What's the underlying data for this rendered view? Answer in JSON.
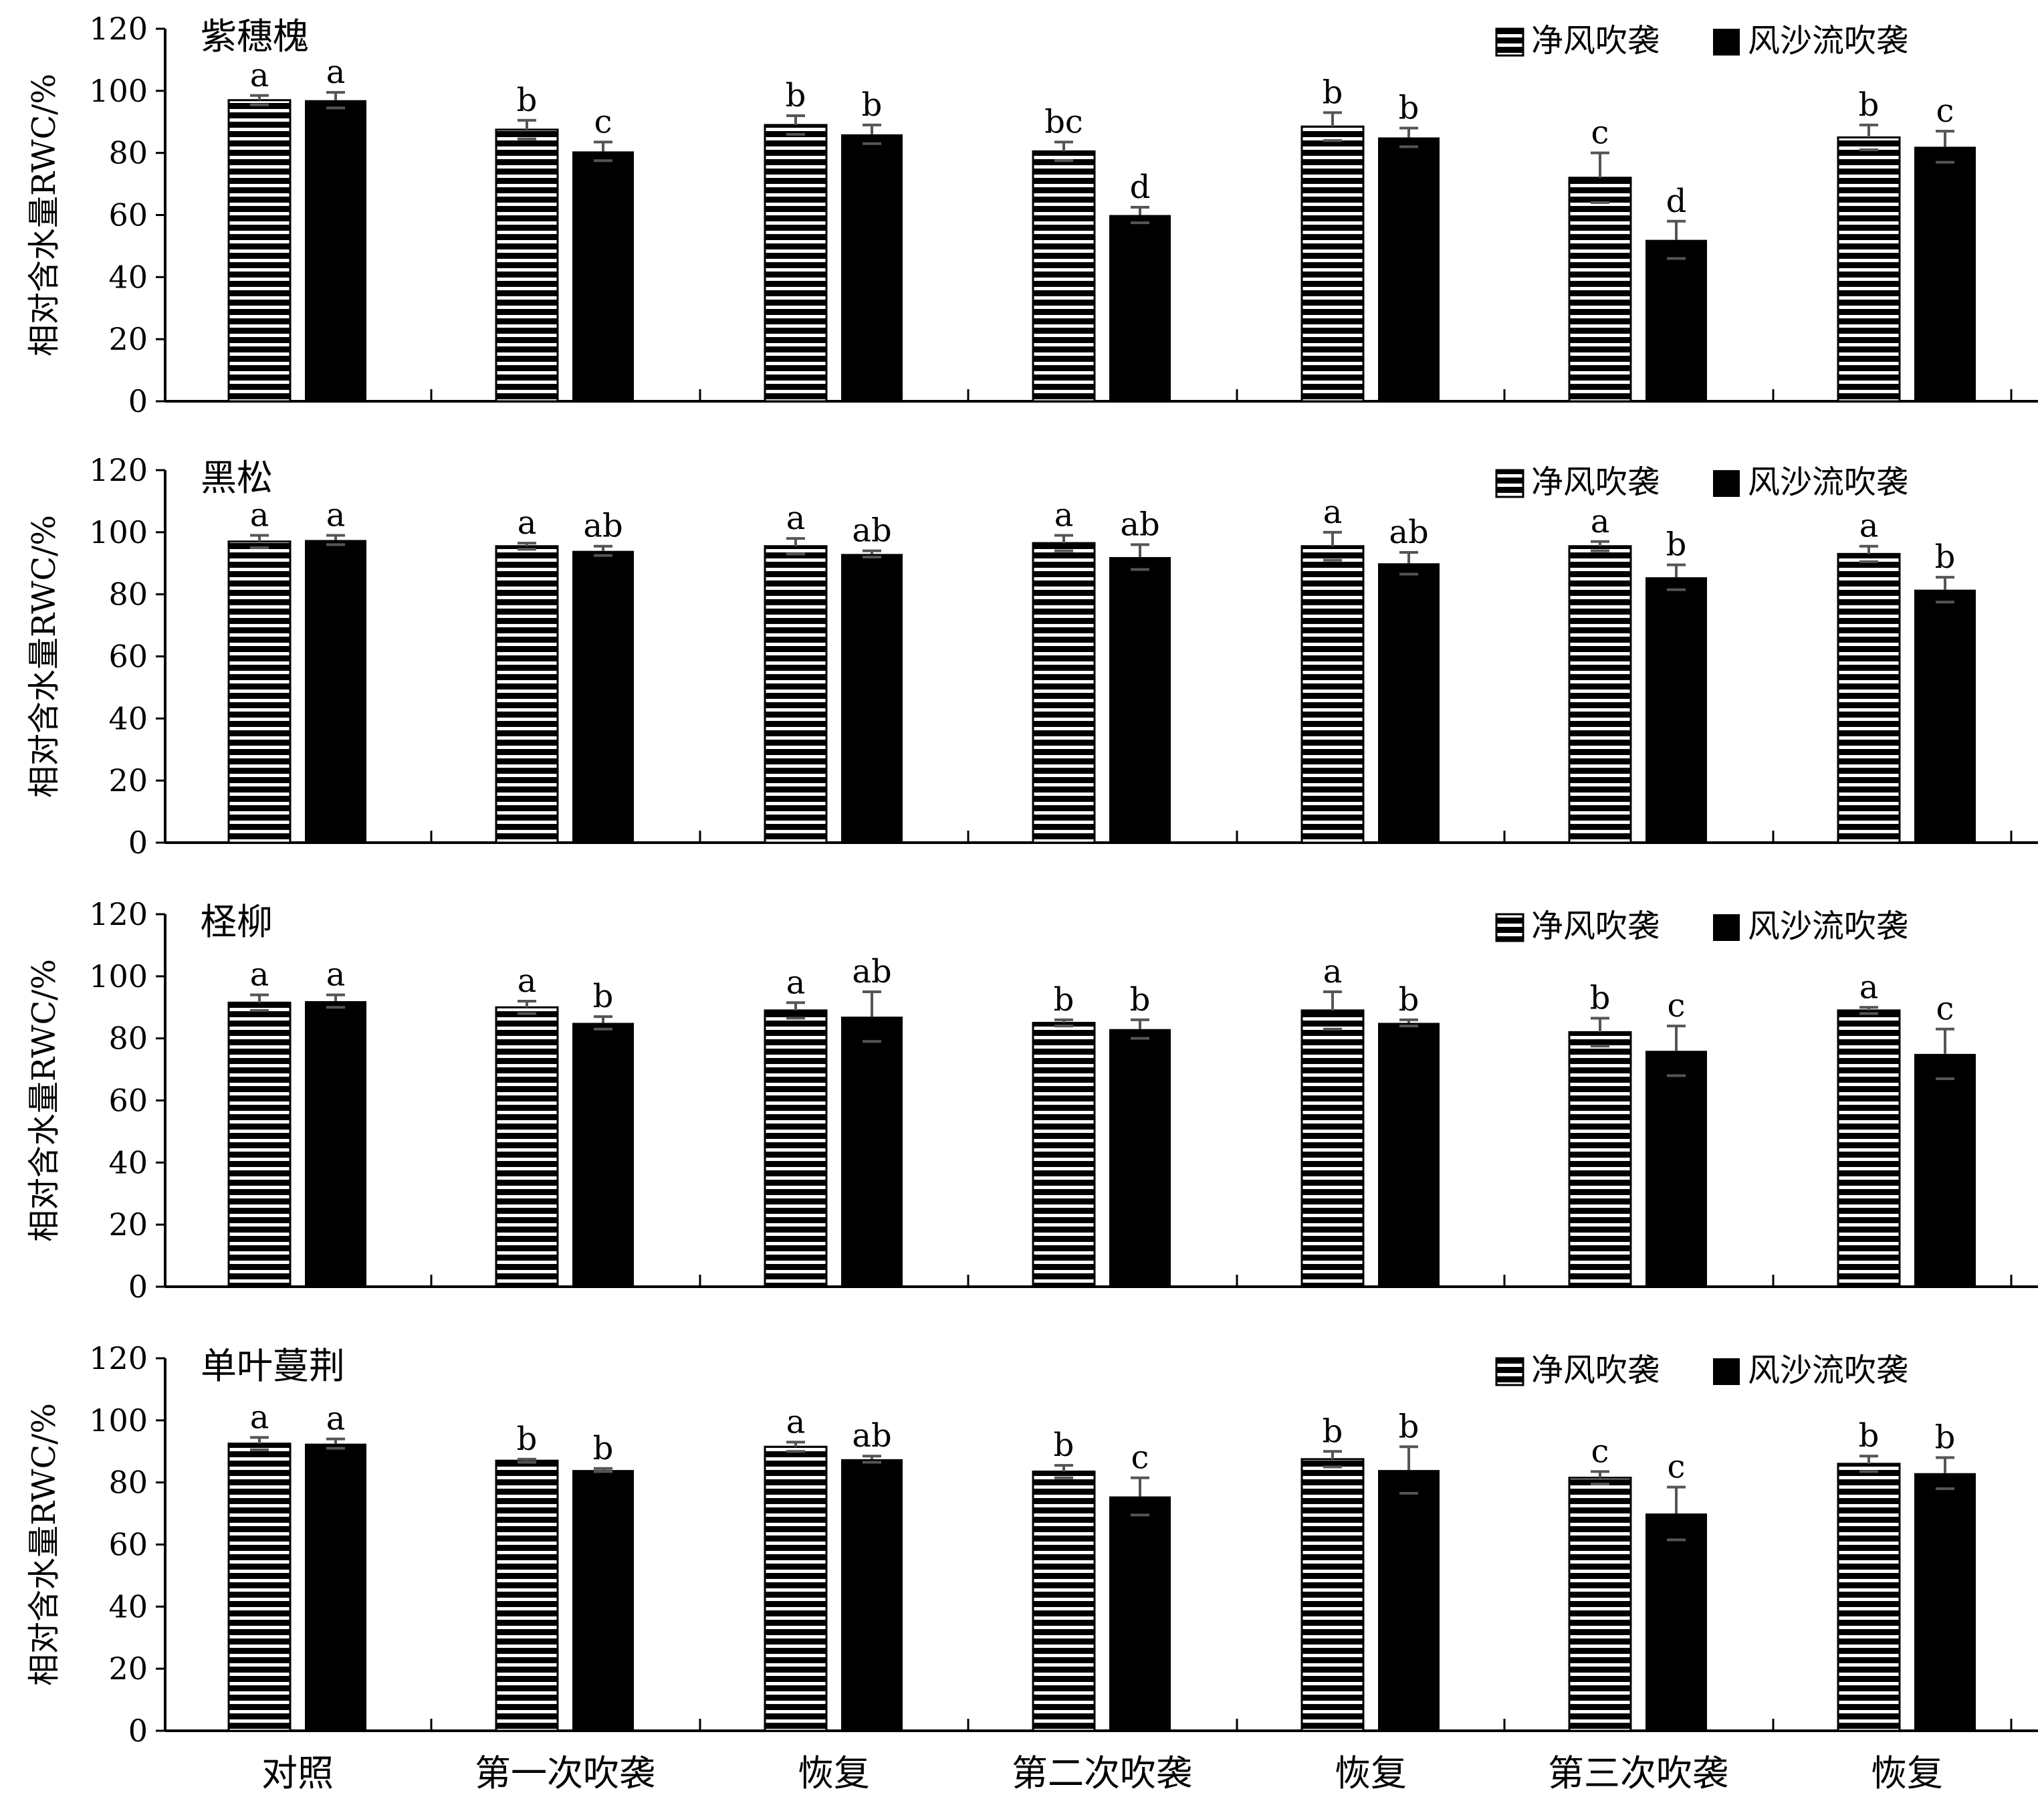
{
  "chart_data": {
    "type": "bar",
    "ylabel": "相对含水量RWC/%",
    "ylim": [
      0,
      120
    ],
    "yticks": [
      0,
      20,
      40,
      60,
      80,
      100,
      120
    ],
    "categories": [
      "对照",
      "第一次吹袭",
      "恢复",
      "第二次吹袭",
      "恢复",
      "第三次吹袭",
      "恢复"
    ],
    "legend": [
      "净风吹袭",
      "风沙流吹袭"
    ],
    "legend_position": "top-right",
    "colors": {
      "series0_fill": "#ffffff",
      "series0_stripe": "#000000",
      "series1_fill": "#000000",
      "errorbar": "#555555"
    },
    "panels": [
      {
        "title": "紫穗槐",
        "series": [
          {
            "name": "净风吹袭",
            "values": [
              97,
              87.5,
              89,
              80.5,
              88.5,
              72,
              85
            ],
            "errors": [
              1.5,
              3,
              3,
              3,
              4.5,
              8,
              4
            ],
            "labels": [
              "a",
              "b",
              "b",
              "bc",
              "b",
              "c",
              "b"
            ]
          },
          {
            "name": "风沙流吹袭",
            "values": [
              97,
              80.5,
              86,
              60,
              85,
              52,
              82
            ],
            "errors": [
              2.5,
              3,
              3,
              2.5,
              3,
              6,
              5
            ],
            "labels": [
              "a",
              "c",
              "b",
              "d",
              "b",
              "d",
              "c"
            ]
          }
        ]
      },
      {
        "title": "黑松",
        "series": [
          {
            "name": "净风吹袭",
            "values": [
              97,
              95.5,
              95.5,
              96.5,
              95.5,
              95.5,
              93
            ],
            "errors": [
              2,
              1,
              2.5,
              2.5,
              4.5,
              1.5,
              2.5
            ],
            "labels": [
              "a",
              "a",
              "a",
              "a",
              "a",
              "a",
              "a"
            ]
          },
          {
            "name": "风沙流吹袭",
            "values": [
              97.5,
              94,
              93,
              92,
              90,
              85.5,
              81.5
            ],
            "errors": [
              1.5,
              1.5,
              1,
              4,
              3.5,
              4,
              4
            ],
            "labels": [
              "a",
              "ab",
              "ab",
              "ab",
              "ab",
              "b",
              "b"
            ]
          }
        ]
      },
      {
        "title": "柽柳",
        "series": [
          {
            "name": "净风吹袭",
            "values": [
              91.5,
              90,
              89,
              85,
              89,
              82,
              89
            ],
            "errors": [
              2.5,
              2,
              2.5,
              1,
              6,
              4.5,
              1
            ],
            "labels": [
              "a",
              "a",
              "a",
              "b",
              "a",
              "b",
              "a"
            ]
          },
          {
            "name": "风沙流吹袭",
            "values": [
              92,
              85,
              87,
              83,
              85,
              76,
              75
            ],
            "errors": [
              2,
              2,
              8,
              3,
              1,
              8,
              8
            ],
            "labels": [
              "a",
              "b",
              "ab",
              "b",
              "b",
              "c",
              "c"
            ]
          }
        ]
      },
      {
        "title": "单叶蔓荆",
        "series": [
          {
            "name": "净风吹袭",
            "values": [
              92.5,
              87,
              91.5,
              83.5,
              87.5,
              81.5,
              86
            ],
            "errors": [
              2,
              0.5,
              1.5,
              2,
              2.5,
              2,
              2.5
            ],
            "labels": [
              "a",
              "b",
              "a",
              "b",
              "b",
              "c",
              "b"
            ]
          },
          {
            "name": "风沙流吹袭",
            "values": [
              92.5,
              84,
              87.5,
              75.5,
              84,
              70,
              83
            ],
            "errors": [
              1.5,
              0.5,
              1,
              6,
              7.5,
              8.5,
              5
            ],
            "labels": [
              "a",
              "b",
              "ab",
              "c",
              "b",
              "c",
              "b"
            ]
          }
        ]
      }
    ]
  }
}
